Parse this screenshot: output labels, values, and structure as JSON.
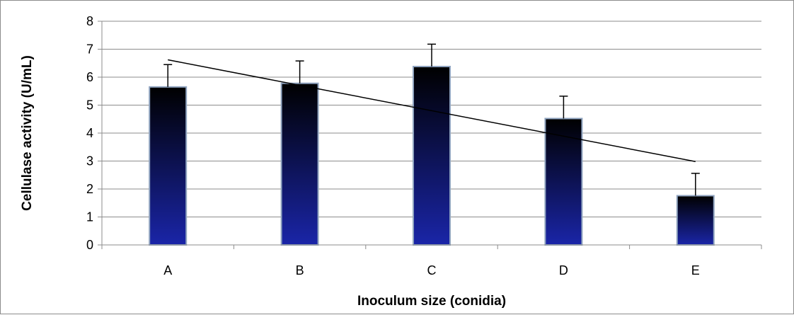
{
  "chart_data": {
    "type": "bar",
    "title": "",
    "xlabel": "Inoculum size (conidia)",
    "ylabel": "Cellulase activity (U/mL)",
    "categories": [
      "A",
      "B",
      "C",
      "D",
      "E"
    ],
    "values": [
      5.65,
      5.78,
      6.38,
      4.52,
      1.76
    ],
    "error_plus": [
      0.8,
      0.8,
      0.8,
      0.8,
      0.8
    ],
    "trendline": {
      "type": "linear",
      "start": 6.62,
      "end": 2.98
    },
    "ylim": [
      0,
      8
    ],
    "yticks": [
      0,
      1,
      2,
      3,
      4,
      5,
      6,
      7,
      8
    ],
    "grid": true,
    "legend": "none",
    "colors": {
      "bar_top": "#000000",
      "bar_bottom": "#1a25a8",
      "bar_edge": "#8fa3bf",
      "grid": "#8c8c8c"
    }
  }
}
